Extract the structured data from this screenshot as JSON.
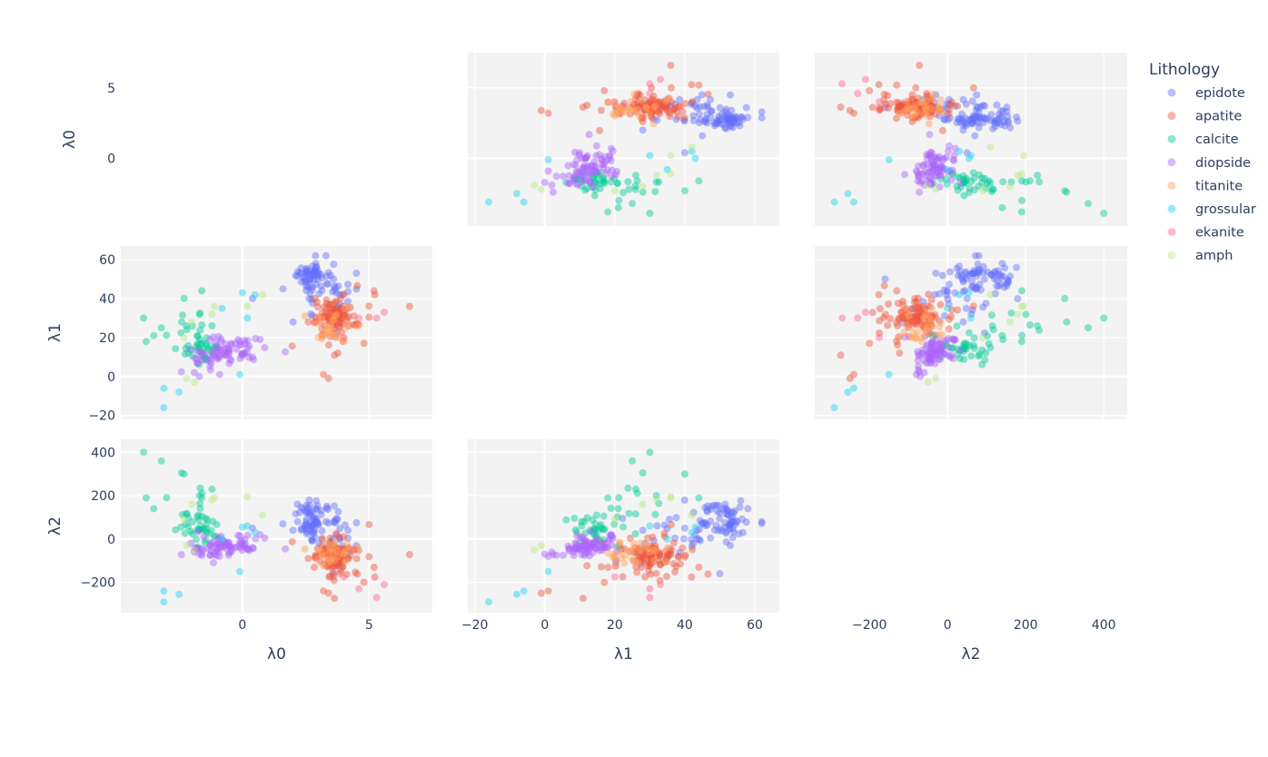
{
  "chart_data": {
    "type": "scatter",
    "subtype": "scatter-matrix",
    "variables": [
      "λ0",
      "λ1",
      "λ2"
    ],
    "legend": {
      "title": "Lithology",
      "position": "right"
    },
    "grid": true,
    "diagonal": "hidden",
    "upper_triangle": "shown",
    "axis_ranges": {
      "λ0": [
        -4.8,
        7.5
      ],
      "λ1": [
        -22,
        67
      ],
      "λ2": [
        -340,
        460
      ]
    },
    "ticks": {
      "λ0_y": [
        "5",
        "0"
      ],
      "λ0_x": [
        "0",
        "5"
      ],
      "λ1_y": [
        "60",
        "40",
        "20",
        "0",
        "−20"
      ],
      "λ1_x": [
        "−20",
        "0",
        "20",
        "40",
        "60"
      ],
      "λ2_y": [
        "400",
        "200",
        "0",
        "−200"
      ],
      "λ2_x": [
        "−200",
        "0",
        "200",
        "400"
      ]
    },
    "tick_values": {
      "λ0": [
        0,
        5
      ],
      "λ0_x": [
        0,
        5
      ],
      "λ1": [
        -20,
        0,
        20,
        40,
        60
      ],
      "λ2": [
        -200,
        0,
        200,
        400
      ]
    },
    "series": [
      {
        "name": "epidote",
        "color": "#636efa",
        "clusters": [
          {
            "n": 42,
            "l0": [
              2.6,
              0.25
            ],
            "l1": [
              52,
              3
            ],
            "l2": [
              95,
              40
            ]
          },
          {
            "n": 28,
            "l0": [
              3.2,
              0.5
            ],
            "l1": [
              47,
              6
            ],
            "l2": [
              60,
              55
            ]
          },
          {
            "n": 18,
            "l0": [
              3.6,
              0.6
            ],
            "l1": [
              36,
              6
            ],
            "l2": [
              20,
              70
            ]
          }
        ],
        "points": [
          [
            2.9,
            58,
            140
          ],
          [
            3.3,
            62,
            80
          ],
          [
            0.4,
            40,
            50
          ],
          [
            2.0,
            28,
            40
          ],
          [
            4.5,
            53,
            -30
          ],
          [
            3.6,
            50,
            -160
          ],
          [
            1.6,
            45,
            70
          ]
        ]
      },
      {
        "name": "apatite",
        "color": "#ef553b",
        "clusters": [
          {
            "n": 60,
            "l0": [
              3.6,
              0.35
            ],
            "l1": [
              31,
              4
            ],
            "l2": [
              -70,
              35
            ]
          },
          {
            "n": 40,
            "l0": [
              4.0,
              0.6
            ],
            "l1": [
              28,
              8
            ],
            "l2": [
              -100,
              60
            ]
          }
        ],
        "points": [
          [
            6.6,
            36,
            -72
          ],
          [
            3.2,
            1,
            -240
          ],
          [
            3.4,
            -1,
            -250
          ],
          [
            2.6,
            28,
            -90
          ],
          [
            5.2,
            44,
            -130
          ],
          [
            4.8,
            17,
            -200
          ]
        ]
      },
      {
        "name": "calcite",
        "color": "#00cc96",
        "clusters": [
          {
            "n": 30,
            "l0": [
              -1.6,
              0.3
            ],
            "l1": [
              14,
              3
            ],
            "l2": [
              40,
              30
            ]
          },
          {
            "n": 14,
            "l0": [
              -2.2,
              0.5
            ],
            "l1": [
              26,
              8
            ],
            "l2": [
              150,
              90
            ]
          }
        ],
        "points": [
          [
            -3.9,
            30,
            400
          ],
          [
            -2.3,
            40,
            300
          ],
          [
            -3.2,
            25,
            360
          ],
          [
            -2.4,
            28,
            305
          ],
          [
            -3.8,
            18,
            190
          ],
          [
            -3.5,
            21,
            140
          ],
          [
            -1.2,
            26,
            230
          ],
          [
            -1.6,
            44,
            190
          ]
        ]
      },
      {
        "name": "diopside",
        "color": "#ab63fa",
        "clusters": [
          {
            "n": 55,
            "l0": [
              -0.6,
              0.7
            ],
            "l1": [
              14,
              3.5
            ],
            "l2": [
              -30,
              30
            ]
          },
          {
            "n": 20,
            "l0": [
              -1.5,
              0.4
            ],
            "l1": [
              10,
              3
            ],
            "l2": [
              -50,
              25
            ]
          }
        ],
        "points": [
          [
            0.7,
            19,
            20
          ],
          [
            -1.9,
            2,
            -60
          ],
          [
            -0.9,
            1,
            -80
          ],
          [
            -1.7,
            0,
            -70
          ],
          [
            0.4,
            10,
            -40
          ]
        ]
      },
      {
        "name": "titanite",
        "color": "#ffa15a",
        "clusters": [
          {
            "n": 26,
            "l0": [
              3.6,
              0.4
            ],
            "l1": [
              27,
              4
            ],
            "l2": [
              -60,
              30
            ]
          }
        ],
        "points": [
          [
            3.0,
            20,
            -90
          ],
          [
            4.2,
            35,
            -40
          ]
        ]
      },
      {
        "name": "grossular",
        "color": "#19d3f3",
        "clusters": [],
        "points": [
          [
            -3.1,
            -6,
            -240
          ],
          [
            -3.1,
            -16,
            -290
          ],
          [
            -2.5,
            -8,
            -255
          ],
          [
            0.0,
            43,
            55
          ],
          [
            -0.1,
            1,
            -150
          ],
          [
            0.2,
            30,
            60
          ],
          [
            -0.8,
            35,
            0
          ],
          [
            0.5,
            42,
            30
          ]
        ]
      },
      {
        "name": "ekanite",
        "color": "#ff6692",
        "clusters": [],
        "points": [
          [
            5.3,
            30,
            -270
          ],
          [
            4.6,
            30,
            -230
          ],
          [
            5.6,
            33,
            -210
          ],
          [
            4.0,
            20,
            -175
          ]
        ]
      },
      {
        "name": "amph",
        "color": "#b6e880",
        "clusters": [],
        "points": [
          [
            -2.2,
            -1,
            -30
          ],
          [
            -1.9,
            -3,
            -50
          ],
          [
            -1.2,
            32,
            180
          ],
          [
            -1.1,
            36,
            190
          ],
          [
            -2.0,
            28,
            160
          ],
          [
            0.8,
            42,
            110
          ],
          [
            0.2,
            36,
            195
          ],
          [
            -2.3,
            20,
            90
          ]
        ]
      }
    ]
  }
}
